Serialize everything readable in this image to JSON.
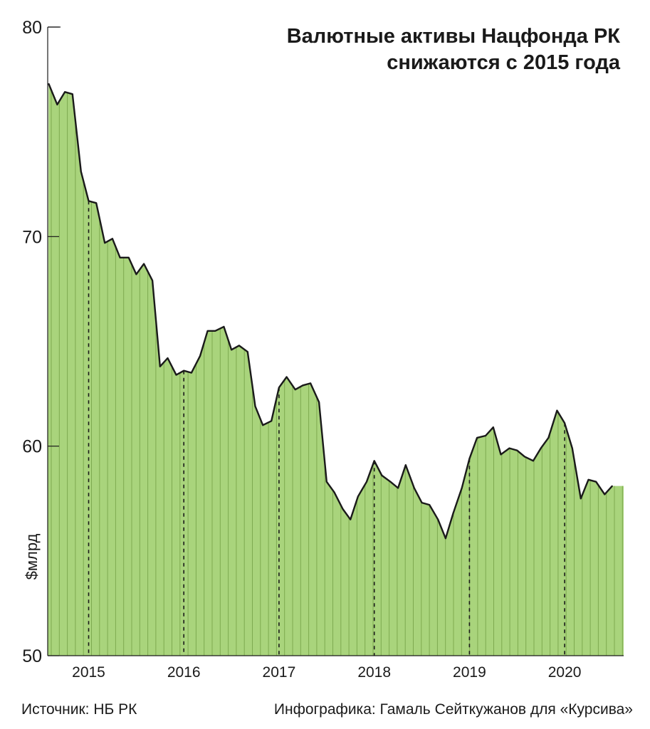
{
  "chart_data": {
    "type": "area",
    "title_lines": [
      "Валютные активы Нацфонда РК",
      "снижаются с 2015 года"
    ],
    "ylabel": "$млрд",
    "ylim": [
      50,
      80
    ],
    "yticks": [
      "50",
      "60",
      "70",
      "80"
    ],
    "year_labels": [
      {
        "label": "2015",
        "at": 2015
      },
      {
        "label": "2016",
        "at": 2016
      },
      {
        "label": "2017",
        "at": 2017
      },
      {
        "label": "2018",
        "at": 2018
      },
      {
        "label": "2019",
        "at": 2019
      },
      {
        "label": "2020",
        "at": 2020
      }
    ],
    "x_range": [
      2014.57,
      2020.62
    ],
    "series": [
      {
        "values": [
          [
            2014.58,
            77.3
          ],
          [
            2014.67,
            76.3
          ],
          [
            2014.75,
            76.9
          ],
          [
            2014.83,
            76.8
          ],
          [
            2014.92,
            73.1
          ],
          [
            2015.0,
            71.7
          ],
          [
            2015.08,
            71.6
          ],
          [
            2015.17,
            69.7
          ],
          [
            2015.25,
            69.9
          ],
          [
            2015.33,
            69.0
          ],
          [
            2015.42,
            69.0
          ],
          [
            2015.5,
            68.2
          ],
          [
            2015.58,
            68.7
          ],
          [
            2015.67,
            67.9
          ],
          [
            2015.75,
            63.8
          ],
          [
            2015.83,
            64.2
          ],
          [
            2015.92,
            63.4
          ],
          [
            2016.0,
            63.6
          ],
          [
            2016.08,
            63.5
          ],
          [
            2016.17,
            64.3
          ],
          [
            2016.25,
            65.5
          ],
          [
            2016.33,
            65.5
          ],
          [
            2016.42,
            65.7
          ],
          [
            2016.5,
            64.6
          ],
          [
            2016.58,
            64.8
          ],
          [
            2016.67,
            64.5
          ],
          [
            2016.75,
            61.9
          ],
          [
            2016.83,
            61.0
          ],
          [
            2016.92,
            61.2
          ],
          [
            2017.0,
            62.8
          ],
          [
            2017.08,
            63.3
          ],
          [
            2017.17,
            62.7
          ],
          [
            2017.25,
            62.9
          ],
          [
            2017.33,
            63.0
          ],
          [
            2017.42,
            62.1
          ],
          [
            2017.5,
            58.3
          ],
          [
            2017.58,
            57.8
          ],
          [
            2017.67,
            57.0
          ],
          [
            2017.75,
            56.5
          ],
          [
            2017.83,
            57.6
          ],
          [
            2017.92,
            58.3
          ],
          [
            2018.0,
            59.3
          ],
          [
            2018.08,
            58.6
          ],
          [
            2018.17,
            58.3
          ],
          [
            2018.25,
            58.0
          ],
          [
            2018.33,
            59.1
          ],
          [
            2018.42,
            58.0
          ],
          [
            2018.5,
            57.3
          ],
          [
            2018.58,
            57.2
          ],
          [
            2018.67,
            56.5
          ],
          [
            2018.75,
            55.6
          ],
          [
            2018.83,
            56.8
          ],
          [
            2018.92,
            58.0
          ],
          [
            2019.0,
            59.4
          ],
          [
            2019.08,
            60.4
          ],
          [
            2019.17,
            60.5
          ],
          [
            2019.25,
            60.9
          ],
          [
            2019.33,
            59.6
          ],
          [
            2019.42,
            59.9
          ],
          [
            2019.5,
            59.8
          ],
          [
            2019.58,
            59.5
          ],
          [
            2019.67,
            59.3
          ],
          [
            2019.75,
            59.9
          ],
          [
            2019.83,
            60.4
          ],
          [
            2019.92,
            61.7
          ],
          [
            2020.0,
            61.1
          ],
          [
            2020.08,
            59.9
          ],
          [
            2020.17,
            57.5
          ],
          [
            2020.25,
            58.4
          ],
          [
            2020.33,
            58.3
          ],
          [
            2020.42,
            57.7
          ],
          [
            2020.5,
            58.1
          ]
        ]
      }
    ],
    "colors": {
      "fill": "#a9d47c",
      "stripes": "#7eaa50",
      "line": "#1a1a1a",
      "axis": "#1a1a1a",
      "dashed": "#1a1a1a"
    },
    "grid": false
  },
  "footer": {
    "source": "Источник: НБ РК",
    "credit": "Инфографика: Гамаль Сейткужанов для «Курсива»"
  }
}
